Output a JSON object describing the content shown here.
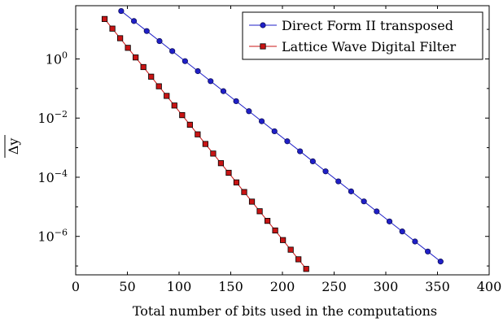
{
  "chart_data": {
    "type": "line",
    "xlabel": "Total number of bits used in the computations",
    "ylabel": "Δy",
    "xlim": [
      0,
      400
    ],
    "ylim_log10": [
      -7.3,
      1.8
    ],
    "yscale": "log",
    "x_ticks": [
      0,
      50,
      100,
      150,
      200,
      250,
      300,
      350,
      400
    ],
    "y_tick_exponents": [
      0,
      -2,
      -4,
      -6
    ],
    "y_tick_labels": [
      "10^0",
      "10^-2",
      "10^-4",
      "10^-6"
    ],
    "grid": false,
    "legend_position": "top-right",
    "series": [
      {
        "name": "Direct Form II transposed",
        "color": "#1f1fc8",
        "marker": "circle",
        "x_start": 44,
        "x_end": 353,
        "x_step": 12.4,
        "log10_y_start": 1.62,
        "log10_y_end": -6.85
      },
      {
        "name": "Lattice Wave Digital Filter",
        "color": "#c81414",
        "marker": "square",
        "x_start": 28,
        "x_end": 223,
        "x_step": 7.5,
        "log10_y_start": 1.35,
        "log10_y_end": -7.1
      }
    ]
  }
}
